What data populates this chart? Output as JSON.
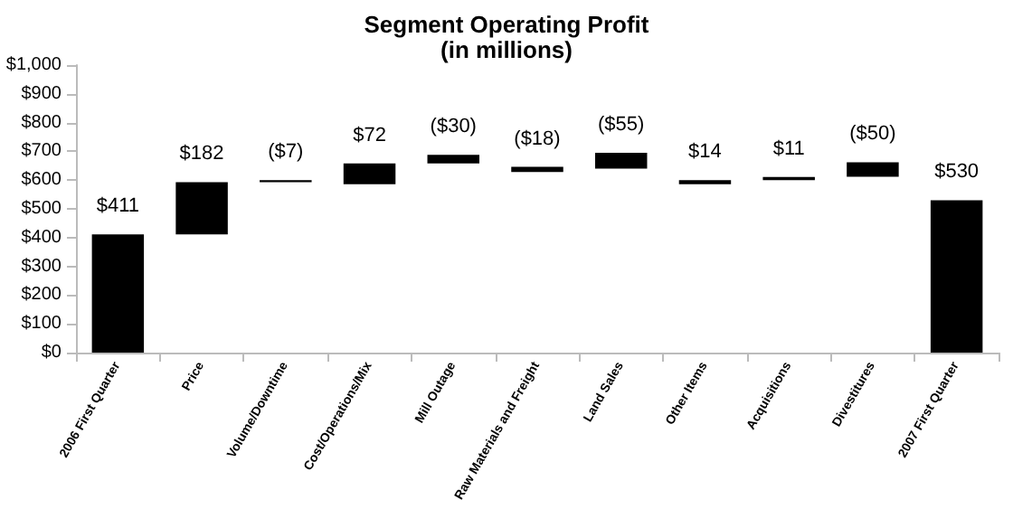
{
  "chart_data": {
    "type": "bar",
    "title": "Segment Operating Profit",
    "subtitle": "(in millions)",
    "categories": [
      "2006 First Quarter",
      "Price",
      "Volume/Downtime",
      "Cost/Operations/Mix",
      "Mill Outage",
      "Raw Materials and Freight",
      "Land Sales",
      "Other Items",
      "Acquisitions",
      "Divestitures",
      "2007 First Quarter"
    ],
    "values": [
      411,
      182,
      -7,
      72,
      -30,
      -18,
      -55,
      14,
      11,
      -50,
      530
    ],
    "base": [
      0,
      411,
      600,
      586,
      688,
      646,
      695,
      586,
      600,
      662,
      0
    ],
    "value_labels": [
      "$411",
      "$182",
      "($7)",
      "$72",
      "($30)",
      "($18)",
      "($55)",
      "$14",
      "$11",
      "($50)",
      "$530"
    ],
    "color": "#000000",
    "ylim": [
      0,
      1000
    ],
    "yticks": [
      {
        "value": 0,
        "label": "$0"
      },
      {
        "value": 100,
        "label": "$100"
      },
      {
        "value": 200,
        "label": "$200"
      },
      {
        "value": 300,
        "label": "$300"
      },
      {
        "value": 400,
        "label": "$400"
      },
      {
        "value": 500,
        "label": "$500"
      },
      {
        "value": 600,
        "label": "$600"
      },
      {
        "value": 700,
        "label": "$700"
      },
      {
        "value": 800,
        "label": "$800"
      },
      {
        "value": 900,
        "label": "$900"
      },
      {
        "value": 1000,
        "label": "$1,000"
      }
    ],
    "grid": false
  }
}
